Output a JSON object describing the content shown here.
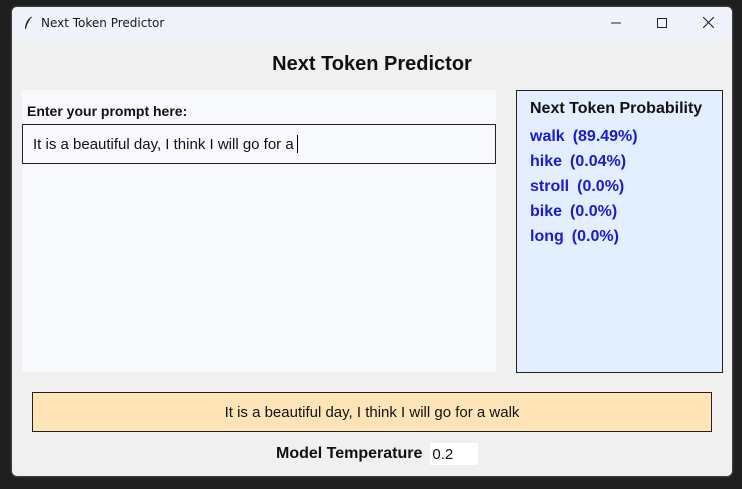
{
  "window": {
    "title": "Next Token Predictor",
    "icon": "feather-icon"
  },
  "main": {
    "heading": "Next Token Predictor",
    "prompt_label": "Enter your prompt here:",
    "prompt_value": "It is a beautiful day, I think I will go for a"
  },
  "probabilities": {
    "title": "Next Token Probability",
    "items": [
      {
        "token": "walk",
        "percent": "(89.49%)"
      },
      {
        "token": "hike",
        "percent": "(0.04%)"
      },
      {
        "token": "stroll",
        "percent": "(0.0%)"
      },
      {
        "token": "bike",
        "percent": "(0.0%)"
      },
      {
        "token": "long",
        "percent": "(0.0%)"
      }
    ],
    "color": "#1a1ad1"
  },
  "output": {
    "text": "It is a beautiful day, I think I will go for a walk",
    "background": "#ffe4b8"
  },
  "temperature": {
    "label": "Model Temperature",
    "value": "0.2"
  }
}
